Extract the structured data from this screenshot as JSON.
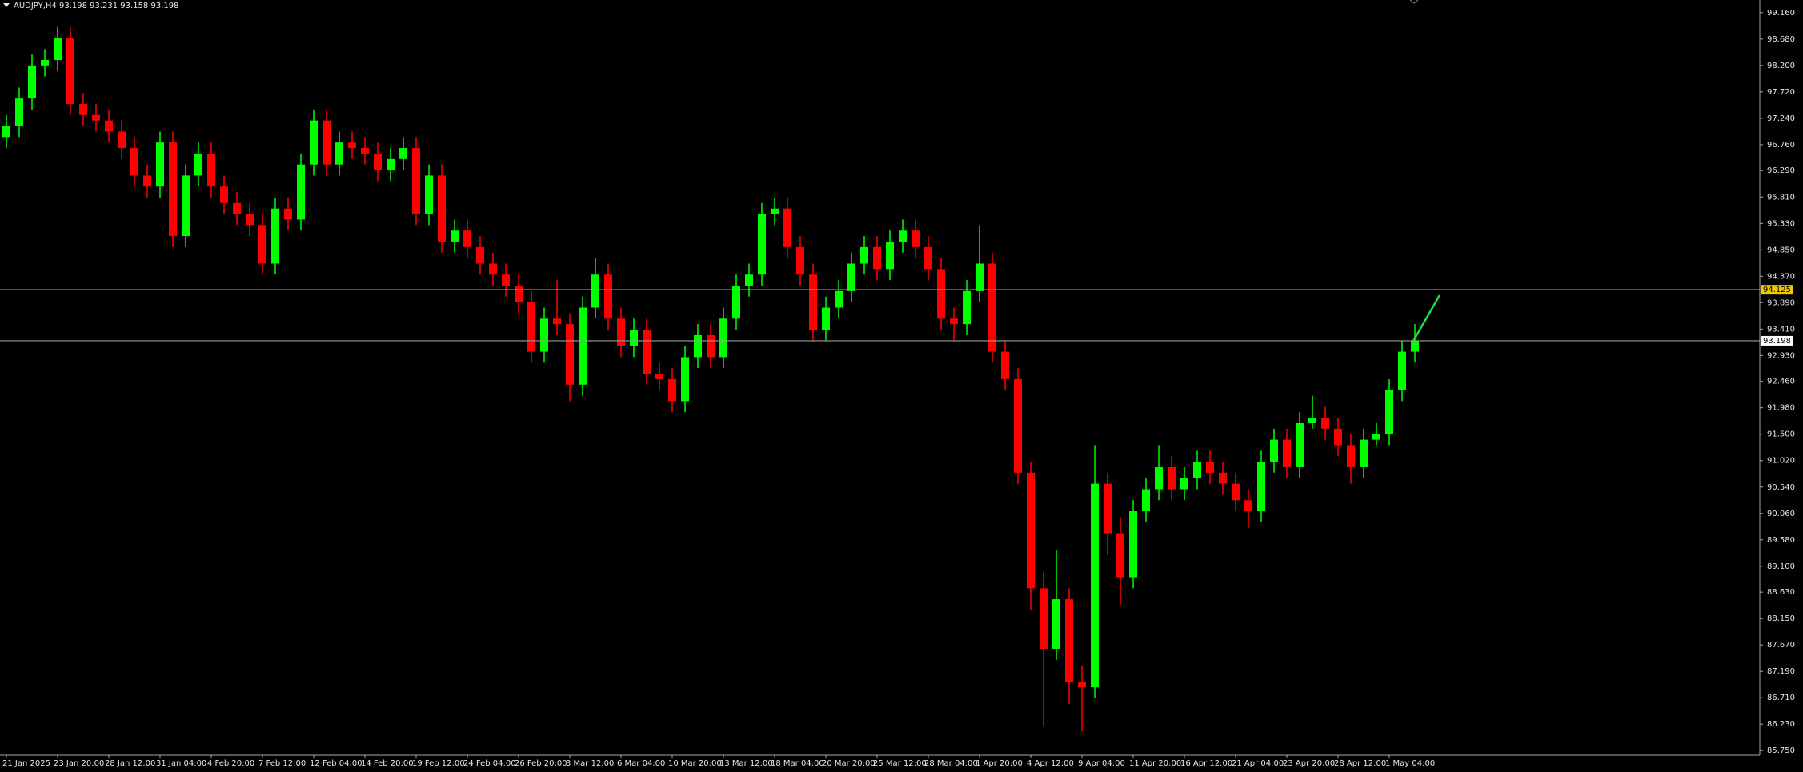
{
  "chart_data": {
    "type": "candlestick",
    "title": "AUDJPY,H4  93.198 93.231 93.158 93.198",
    "up_color": "#00ff00",
    "down_color": "#ff0000",
    "categories": [
      "21 Jan 2025",
      null,
      null,
      null,
      "23 Jan 20:00",
      null,
      null,
      null,
      "28 Jan 12:00",
      null,
      null,
      null,
      "31 Jan 04:00",
      null,
      null,
      null,
      "4 Feb 20:00",
      null,
      null,
      null,
      "7 Feb 12:00",
      null,
      null,
      null,
      "12 Feb 04:00",
      null,
      null,
      null,
      "14 Feb 20:00",
      null,
      null,
      null,
      "19 Feb 12:00",
      null,
      null,
      null,
      "24 Feb 04:00",
      null,
      null,
      null,
      "26 Feb 20:00",
      null,
      null,
      null,
      "3 Mar 12:00",
      null,
      null,
      null,
      "6 Mar 04:00",
      null,
      null,
      null,
      "10 Mar 20:00",
      null,
      null,
      null,
      "13 Mar 12:00",
      null,
      null,
      null,
      "18 Mar 04:00",
      null,
      null,
      null,
      "20 Mar 20:00",
      null,
      null,
      null,
      "25 Mar 12:00",
      null,
      null,
      null,
      "28 Mar 04:00",
      null,
      null,
      null,
      "1 Apr 20:00",
      null,
      null,
      null,
      "4 Apr 12:00",
      null,
      null,
      null,
      "9 Apr 04:00",
      null,
      null,
      null,
      "11 Apr 20:00",
      null,
      null,
      null,
      "16 Apr 12:00",
      null,
      null,
      null,
      "21 Apr 04:00",
      null,
      null,
      null,
      "23 Apr 20:00",
      null,
      null,
      null,
      "28 Apr 12:00",
      null,
      null,
      null,
      "1 May 04:00",
      null,
      null
    ],
    "open": [
      96.9,
      97.1,
      97.6,
      98.2,
      98.3,
      98.7,
      97.5,
      97.3,
      97.2,
      97.0,
      96.7,
      96.2,
      96.0,
      96.8,
      95.1,
      96.2,
      96.6,
      96.0,
      95.7,
      95.5,
      95.3,
      94.6,
      95.6,
      95.4,
      96.4,
      97.2,
      96.4,
      96.8,
      96.7,
      96.6,
      96.3,
      96.5,
      96.7,
      95.5,
      96.2,
      95.0,
      95.2,
      94.9,
      94.6,
      94.4,
      94.2,
      93.9,
      93.0,
      93.6,
      93.5,
      92.4,
      93.8,
      94.4,
      93.6,
      93.1,
      93.4,
      92.6,
      92.5,
      92.1,
      92.9,
      93.3,
      92.9,
      93.6,
      94.2,
      94.4,
      95.5,
      95.6,
      94.9,
      94.4,
      93.4,
      93.8,
      94.1,
      94.6,
      94.9,
      94.5,
      95.0,
      95.2,
      94.9,
      94.5,
      93.6,
      93.5,
      94.1,
      94.6,
      93.0,
      92.5,
      90.8,
      88.7,
      87.6,
      88.5,
      87.0,
      86.9,
      90.6,
      89.7,
      88.9,
      90.1,
      90.5,
      90.9,
      90.5,
      90.7,
      91.0,
      90.8,
      90.6,
      90.3,
      90.1,
      91.0,
      91.4,
      90.9,
      91.7,
      91.8,
      91.6,
      91.3,
      90.9,
      91.4,
      91.5,
      92.3,
      93.0
    ],
    "high": [
      97.3,
      97.8,
      98.4,
      98.5,
      98.9,
      98.9,
      97.7,
      97.5,
      97.4,
      97.2,
      96.9,
      96.4,
      97.0,
      97.0,
      96.4,
      96.8,
      96.8,
      96.2,
      95.9,
      95.7,
      95.5,
      95.8,
      95.8,
      96.6,
      97.4,
      97.4,
      97.0,
      97.0,
      96.9,
      96.8,
      96.7,
      96.9,
      96.9,
      96.4,
      96.4,
      95.4,
      95.4,
      95.1,
      94.8,
      94.6,
      94.4,
      94.1,
      93.8,
      94.3,
      93.7,
      94.0,
      94.7,
      94.6,
      93.8,
      93.6,
      93.6,
      92.8,
      92.7,
      93.1,
      93.5,
      93.5,
      93.8,
      94.4,
      94.6,
      95.7,
      95.8,
      95.8,
      95.1,
      94.6,
      94.0,
      94.3,
      94.8,
      95.1,
      95.1,
      95.2,
      95.4,
      95.4,
      95.1,
      94.7,
      93.8,
      94.3,
      95.3,
      94.8,
      93.2,
      92.7,
      91.0,
      89.0,
      89.4,
      88.7,
      87.3,
      91.3,
      90.8,
      90.0,
      90.3,
      90.7,
      91.3,
      91.1,
      90.9,
      91.2,
      91.2,
      91.0,
      90.8,
      90.5,
      91.2,
      91.6,
      91.6,
      91.9,
      92.2,
      92.0,
      91.8,
      91.5,
      91.6,
      91.7,
      92.5,
      93.2,
      93.5
    ],
    "low": [
      96.7,
      96.9,
      97.4,
      98.0,
      98.1,
      97.3,
      97.1,
      97.0,
      96.8,
      96.5,
      96.0,
      95.8,
      95.8,
      94.9,
      94.9,
      96.0,
      95.8,
      95.5,
      95.3,
      95.1,
      94.4,
      94.4,
      95.2,
      95.2,
      96.2,
      96.2,
      96.2,
      96.5,
      96.4,
      96.1,
      96.1,
      96.3,
      95.3,
      95.3,
      94.8,
      94.8,
      94.7,
      94.4,
      94.2,
      94.0,
      93.7,
      92.8,
      92.8,
      93.3,
      92.1,
      92.2,
      93.6,
      93.4,
      92.9,
      92.9,
      92.4,
      92.3,
      91.9,
      91.9,
      92.7,
      92.7,
      92.7,
      93.4,
      94.0,
      94.2,
      95.3,
      94.7,
      94.2,
      93.2,
      93.2,
      93.6,
      93.9,
      94.4,
      94.3,
      94.3,
      94.8,
      94.7,
      94.3,
      93.4,
      93.2,
      93.3,
      93.9,
      92.8,
      92.3,
      90.6,
      88.3,
      86.2,
      87.4,
      86.6,
      86.1,
      86.7,
      89.3,
      88.4,
      88.7,
      89.9,
      90.3,
      90.3,
      90.3,
      90.5,
      90.6,
      90.4,
      90.1,
      89.8,
      89.9,
      90.8,
      90.7,
      90.7,
      91.6,
      91.4,
      91.1,
      90.6,
      90.7,
      91.3,
      91.3,
      92.1,
      92.8
    ],
    "close": [
      97.1,
      97.6,
      98.2,
      98.3,
      98.7,
      97.5,
      97.3,
      97.2,
      97.0,
      96.7,
      96.2,
      96.0,
      96.8,
      95.1,
      96.2,
      96.6,
      96.0,
      95.7,
      95.5,
      95.3,
      94.6,
      95.6,
      95.4,
      96.4,
      97.2,
      96.4,
      96.8,
      96.7,
      96.6,
      96.3,
      96.5,
      96.7,
      95.5,
      96.2,
      95.0,
      95.2,
      94.9,
      94.6,
      94.4,
      94.2,
      93.9,
      93.0,
      93.6,
      93.5,
      92.4,
      93.8,
      94.4,
      93.6,
      93.1,
      93.4,
      92.6,
      92.5,
      92.1,
      92.9,
      93.3,
      92.9,
      93.6,
      94.2,
      94.4,
      95.5,
      95.6,
      94.9,
      94.4,
      93.4,
      93.8,
      94.1,
      94.6,
      94.9,
      94.5,
      95.0,
      95.2,
      94.9,
      94.5,
      93.6,
      93.5,
      94.1,
      94.6,
      93.0,
      92.5,
      90.8,
      88.7,
      87.6,
      88.5,
      87.0,
      86.9,
      90.6,
      89.7,
      88.9,
      90.1,
      90.5,
      90.9,
      90.5,
      90.7,
      91.0,
      90.8,
      90.6,
      90.3,
      90.1,
      91.0,
      91.4,
      90.9,
      91.7,
      91.8,
      91.6,
      91.3,
      90.9,
      91.4,
      91.5,
      92.3,
      93.0,
      93.2
    ],
    "ylim": [
      85.71,
      99.39
    ],
    "yticks": [
      {
        "value": 99.16,
        "label": "99.160"
      },
      {
        "value": 98.68,
        "label": "98.680"
      },
      {
        "value": 98.2,
        "label": "98.200"
      },
      {
        "value": 97.72,
        "label": "97.720"
      },
      {
        "value": 97.24,
        "label": "97.240"
      },
      {
        "value": 96.76,
        "label": "96.760"
      },
      {
        "value": 96.29,
        "label": "96.290"
      },
      {
        "value": 95.81,
        "label": "95.810"
      },
      {
        "value": 95.33,
        "label": "95.330"
      },
      {
        "value": 94.85,
        "label": "94.850"
      },
      {
        "value": 94.37,
        "label": "94.370"
      },
      {
        "value": 93.89,
        "label": "93.890"
      },
      {
        "value": 93.41,
        "label": "93.410"
      },
      {
        "value": 92.93,
        "label": "92.930"
      },
      {
        "value": 92.46,
        "label": "92.460"
      },
      {
        "value": 91.98,
        "label": "91.980"
      },
      {
        "value": 91.5,
        "label": "91.500"
      },
      {
        "value": 91.02,
        "label": "91.020"
      },
      {
        "value": 90.54,
        "label": "90.540"
      },
      {
        "value": 90.06,
        "label": "90.060"
      },
      {
        "value": 89.58,
        "label": "89.580"
      },
      {
        "value": 89.1,
        "label": "89.100"
      },
      {
        "value": 88.63,
        "label": "88.630"
      },
      {
        "value": 88.15,
        "label": "88.150"
      },
      {
        "value": 87.67,
        "label": "87.670"
      },
      {
        "value": 87.19,
        "label": "87.190"
      },
      {
        "value": 86.71,
        "label": "86.710"
      },
      {
        "value": 86.23,
        "label": "86.230"
      },
      {
        "value": 85.75,
        "label": "85.750"
      }
    ],
    "levels": [
      {
        "value": 94.125,
        "color": "#d8b000",
        "label_bg": "#f0c800"
      },
      {
        "value": 93.198,
        "color": "#9a9a9a",
        "label_bg": "#ffffff"
      }
    ]
  }
}
